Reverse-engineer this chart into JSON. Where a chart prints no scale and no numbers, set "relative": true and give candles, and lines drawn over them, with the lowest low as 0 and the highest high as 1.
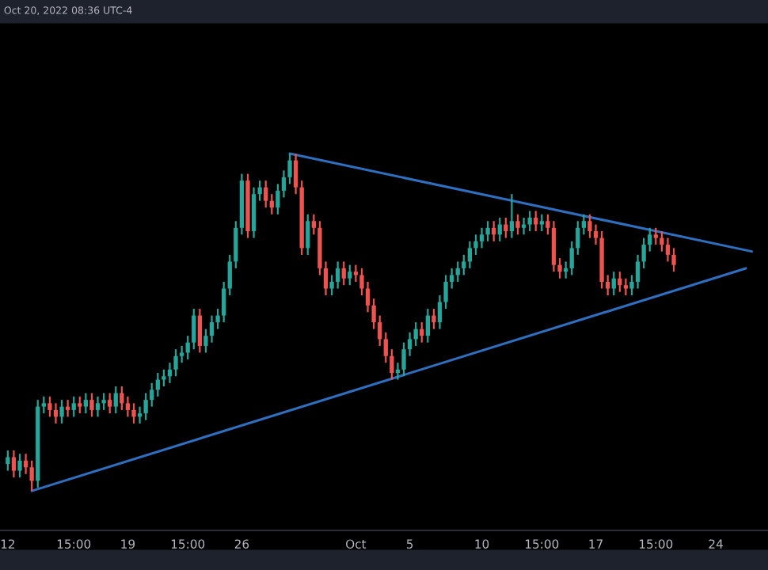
{
  "chart_data": {
    "type": "candlestick",
    "title": "Oct 20, 2022 08:36 UTC-4",
    "relative": true,
    "categories": [
      "12",
      null,
      null,
      null,
      null,
      null,
      null,
      null,
      null,
      null,
      null,
      "15:00",
      null,
      null,
      null,
      null,
      null,
      null,
      null,
      null,
      "19",
      null,
      null,
      null,
      null,
      null,
      null,
      null,
      null,
      null,
      "15:00",
      null,
      null,
      null,
      null,
      null,
      null,
      null,
      null,
      "26",
      null,
      null,
      null,
      null,
      null,
      null,
      null,
      null,
      null,
      null,
      null,
      null,
      null,
      null,
      null,
      null,
      null,
      null,
      "Oct",
      null,
      null,
      null,
      null,
      null,
      null,
      null,
      null,
      "5",
      null,
      null,
      null,
      null,
      null,
      null,
      null,
      null,
      null,
      null,
      null,
      "10",
      null,
      null,
      null,
      null,
      null,
      null,
      null,
      null,
      null,
      "15:00",
      null,
      null,
      null,
      null,
      null,
      null,
      null,
      null,
      "17",
      null,
      null,
      null,
      null,
      null,
      null,
      null,
      null,
      null,
      "15:00",
      null,
      null,
      null,
      null,
      null,
      null,
      null,
      null,
      null,
      "24",
      null,
      null,
      null,
      null,
      null,
      null,
      null,
      null,
      null
    ],
    "grid": false,
    "legend": false,
    "series": [
      {
        "ohlc": [
          [
            0.08,
            0.12,
            0.06,
            0.1
          ],
          [
            0.1,
            0.12,
            0.04,
            0.06
          ],
          [
            0.06,
            0.11,
            0.04,
            0.09
          ],
          [
            0.09,
            0.11,
            0.05,
            0.07
          ],
          [
            0.07,
            0.09,
            0.0,
            0.03
          ],
          [
            0.03,
            0.27,
            0.01,
            0.25
          ],
          [
            0.25,
            0.28,
            0.23,
            0.26
          ],
          [
            0.26,
            0.28,
            0.22,
            0.24
          ],
          [
            0.24,
            0.26,
            0.2,
            0.22
          ],
          [
            0.22,
            0.27,
            0.2,
            0.25
          ],
          [
            0.25,
            0.27,
            0.22,
            0.24
          ],
          [
            0.24,
            0.28,
            0.22,
            0.26
          ],
          [
            0.26,
            0.28,
            0.23,
            0.25
          ],
          [
            0.25,
            0.29,
            0.23,
            0.27
          ],
          [
            0.27,
            0.29,
            0.22,
            0.24
          ],
          [
            0.24,
            0.28,
            0.22,
            0.26
          ],
          [
            0.26,
            0.29,
            0.24,
            0.27
          ],
          [
            0.27,
            0.29,
            0.23,
            0.25
          ],
          [
            0.25,
            0.31,
            0.23,
            0.29
          ],
          [
            0.29,
            0.31,
            0.24,
            0.26
          ],
          [
            0.26,
            0.28,
            0.22,
            0.24
          ],
          [
            0.24,
            0.26,
            0.2,
            0.22
          ],
          [
            0.22,
            0.25,
            0.2,
            0.23
          ],
          [
            0.23,
            0.29,
            0.21,
            0.27
          ],
          [
            0.27,
            0.32,
            0.25,
            0.3
          ],
          [
            0.3,
            0.35,
            0.28,
            0.33
          ],
          [
            0.33,
            0.36,
            0.31,
            0.34
          ],
          [
            0.34,
            0.38,
            0.32,
            0.36
          ],
          [
            0.36,
            0.42,
            0.34,
            0.4
          ],
          [
            0.4,
            0.43,
            0.38,
            0.41
          ],
          [
            0.41,
            0.46,
            0.39,
            0.44
          ],
          [
            0.44,
            0.54,
            0.42,
            0.52
          ],
          [
            0.52,
            0.54,
            0.41,
            0.43
          ],
          [
            0.43,
            0.48,
            0.41,
            0.46
          ],
          [
            0.46,
            0.52,
            0.44,
            0.5
          ],
          [
            0.5,
            0.54,
            0.48,
            0.52
          ],
          [
            0.52,
            0.62,
            0.5,
            0.6
          ],
          [
            0.6,
            0.7,
            0.58,
            0.68
          ],
          [
            0.68,
            0.8,
            0.66,
            0.78
          ],
          [
            0.78,
            0.94,
            0.76,
            0.92
          ],
          [
            0.92,
            0.94,
            0.75,
            0.77
          ],
          [
            0.77,
            0.9,
            0.75,
            0.88
          ],
          [
            0.88,
            0.92,
            0.86,
            0.9
          ],
          [
            0.9,
            0.92,
            0.84,
            0.86
          ],
          [
            0.86,
            0.88,
            0.82,
            0.84
          ],
          [
            0.84,
            0.91,
            0.82,
            0.89
          ],
          [
            0.89,
            0.95,
            0.87,
            0.93
          ],
          [
            0.93,
            1.0,
            0.91,
            0.98
          ],
          [
            0.98,
            1.0,
            0.88,
            0.9
          ],
          [
            0.9,
            0.92,
            0.7,
            0.72
          ],
          [
            0.72,
            0.82,
            0.7,
            0.8
          ],
          [
            0.8,
            0.82,
            0.76,
            0.78
          ],
          [
            0.78,
            0.8,
            0.64,
            0.66
          ],
          [
            0.66,
            0.68,
            0.58,
            0.6
          ],
          [
            0.6,
            0.64,
            0.58,
            0.62
          ],
          [
            0.62,
            0.68,
            0.6,
            0.66
          ],
          [
            0.66,
            0.68,
            0.61,
            0.63
          ],
          [
            0.63,
            0.67,
            0.61,
            0.65
          ],
          [
            0.65,
            0.67,
            0.62,
            0.64
          ],
          [
            0.64,
            0.66,
            0.58,
            0.6
          ],
          [
            0.6,
            0.62,
            0.53,
            0.55
          ],
          [
            0.55,
            0.57,
            0.48,
            0.5
          ],
          [
            0.5,
            0.52,
            0.43,
            0.45
          ],
          [
            0.45,
            0.47,
            0.38,
            0.4
          ],
          [
            0.4,
            0.42,
            0.33,
            0.35
          ],
          [
            0.35,
            0.38,
            0.33,
            0.36
          ],
          [
            0.36,
            0.44,
            0.34,
            0.42
          ],
          [
            0.42,
            0.47,
            0.4,
            0.45
          ],
          [
            0.45,
            0.5,
            0.43,
            0.48
          ],
          [
            0.48,
            0.5,
            0.44,
            0.46
          ],
          [
            0.46,
            0.54,
            0.44,
            0.52
          ],
          [
            0.52,
            0.54,
            0.48,
            0.5
          ],
          [
            0.5,
            0.58,
            0.48,
            0.56
          ],
          [
            0.56,
            0.64,
            0.54,
            0.62
          ],
          [
            0.62,
            0.66,
            0.6,
            0.64
          ],
          [
            0.64,
            0.68,
            0.62,
            0.66
          ],
          [
            0.66,
            0.7,
            0.64,
            0.68
          ],
          [
            0.68,
            0.74,
            0.66,
            0.72
          ],
          [
            0.72,
            0.76,
            0.7,
            0.74
          ],
          [
            0.74,
            0.78,
            0.72,
            0.76
          ],
          [
            0.76,
            0.8,
            0.74,
            0.78
          ],
          [
            0.78,
            0.8,
            0.74,
            0.76
          ],
          [
            0.76,
            0.81,
            0.74,
            0.79
          ],
          [
            0.79,
            0.81,
            0.75,
            0.77
          ],
          [
            0.77,
            0.88,
            0.75,
            0.8
          ],
          [
            0.8,
            0.82,
            0.76,
            0.78
          ],
          [
            0.78,
            0.81,
            0.76,
            0.79
          ],
          [
            0.79,
            0.83,
            0.77,
            0.81
          ],
          [
            0.81,
            0.83,
            0.77,
            0.79
          ],
          [
            0.79,
            0.82,
            0.77,
            0.8
          ],
          [
            0.8,
            0.82,
            0.76,
            0.78
          ],
          [
            0.78,
            0.8,
            0.65,
            0.67
          ],
          [
            0.67,
            0.69,
            0.63,
            0.65
          ],
          [
            0.65,
            0.68,
            0.63,
            0.66
          ],
          [
            0.66,
            0.74,
            0.64,
            0.72
          ],
          [
            0.72,
            0.8,
            0.7,
            0.78
          ],
          [
            0.78,
            0.82,
            0.76,
            0.8
          ],
          [
            0.8,
            0.82,
            0.75,
            0.77
          ],
          [
            0.77,
            0.79,
            0.73,
            0.75
          ],
          [
            0.75,
            0.77,
            0.6,
            0.62
          ],
          [
            0.62,
            0.64,
            0.58,
            0.6
          ],
          [
            0.6,
            0.65,
            0.58,
            0.63
          ],
          [
            0.63,
            0.65,
            0.59,
            0.61
          ],
          [
            0.61,
            0.63,
            0.58,
            0.6
          ],
          [
            0.6,
            0.64,
            0.58,
            0.62
          ],
          [
            0.62,
            0.7,
            0.6,
            0.68
          ],
          [
            0.68,
            0.75,
            0.66,
            0.73
          ],
          [
            0.73,
            0.78,
            0.71,
            0.76
          ],
          [
            0.76,
            0.78,
            0.73,
            0.75
          ],
          [
            0.75,
            0.77,
            0.71,
            0.73
          ],
          [
            0.73,
            0.75,
            0.68,
            0.7
          ],
          [
            0.7,
            0.72,
            0.65,
            0.67
          ],
          null,
          null,
          null,
          null,
          null,
          null,
          null,
          null,
          null,
          null,
          null,
          null,
          null,
          null,
          null,
          null
        ],
        "colors": [
          "#26a69a",
          "#ef5350",
          "#26a69a",
          "#ef5350",
          "#ef5350",
          "#26a69a",
          "#26a69a",
          "#ef5350",
          "#ef5350",
          "#26a69a",
          "#ef5350",
          "#26a69a",
          "#ef5350",
          "#26a69a",
          "#ef5350",
          "#26a69a",
          "#26a69a",
          "#ef5350",
          "#26a69a",
          "#ef5350",
          "#ef5350",
          "#ef5350",
          "#26a69a",
          "#26a69a",
          "#26a69a",
          "#26a69a",
          "#26a69a",
          "#26a69a",
          "#26a69a",
          "#26a69a",
          "#26a69a",
          "#26a69a",
          "#ef5350",
          "#26a69a",
          "#26a69a",
          "#26a69a",
          "#26a69a",
          "#26a69a",
          "#26a69a",
          "#26a69a",
          "#ef5350",
          "#26a69a",
          "#26a69a",
          "#ef5350",
          "#ef5350",
          "#26a69a",
          "#26a69a",
          "#26a69a",
          "#ef5350",
          "#ef5350",
          "#26a69a",
          "#ef5350",
          "#ef5350",
          "#ef5350",
          "#26a69a",
          "#26a69a",
          "#ef5350",
          "#26a69a",
          "#ef5350",
          "#ef5350",
          "#ef5350",
          "#ef5350",
          "#ef5350",
          "#ef5350",
          "#ef5350",
          "#26a69a",
          "#26a69a",
          "#26a69a",
          "#26a69a",
          "#ef5350",
          "#26a69a",
          "#ef5350",
          "#26a69a",
          "#26a69a",
          "#26a69a",
          "#26a69a",
          "#26a69a",
          "#26a69a",
          "#26a69a",
          "#26a69a",
          "#26a69a",
          "#ef5350",
          "#26a69a",
          "#ef5350",
          "#26a69a",
          "#ef5350",
          "#26a69a",
          "#26a69a",
          "#ef5350",
          "#26a69a",
          "#ef5350",
          "#ef5350",
          "#ef5350",
          "#26a69a",
          "#26a69a",
          "#26a69a",
          "#26a69a",
          "#ef5350",
          "#ef5350",
          "#ef5350",
          "#ef5350",
          "#26a69a",
          "#ef5350",
          "#ef5350",
          "#26a69a",
          "#26a69a",
          "#26a69a",
          "#26a69a",
          "#ef5350",
          "#ef5350",
          "#ef5350",
          "#ef5350",
          null,
          null,
          null,
          null,
          null,
          null,
          null,
          null,
          null,
          null,
          null,
          null,
          null,
          null,
          null,
          null
        ]
      },
      {
        "type": "line",
        "color": "#2f6fc0",
        "values": [
          null,
          null,
          null,
          null,
          0.0,
          null,
          null,
          null,
          null,
          null,
          null,
          null,
          null,
          null,
          null,
          null,
          null,
          null,
          null,
          null,
          null,
          null,
          null,
          null,
          null,
          null,
          null,
          null,
          null,
          null,
          null,
          null,
          null,
          null,
          null,
          null,
          null,
          null,
          null,
          null,
          null,
          null,
          null,
          null,
          null,
          null,
          null,
          null,
          null,
          null,
          null,
          null,
          null,
          null,
          null,
          null,
          null,
          null,
          null,
          null,
          null,
          null,
          null,
          null,
          null,
          null,
          null,
          null,
          null,
          null,
          null,
          null,
          null,
          null,
          null,
          null,
          null,
          null,
          null,
          null,
          null,
          null,
          null,
          null,
          null,
          null,
          null,
          null,
          null,
          null,
          null,
          null,
          null,
          null,
          null,
          null,
          null,
          null,
          null,
          null,
          null,
          null,
          null,
          null,
          null,
          null,
          null,
          null,
          null,
          null,
          null,
          null,
          null,
          null,
          null,
          null,
          null,
          null,
          null,
          null,
          null,
          null,
          null,
          0.66,
          null,
          null,
          null,
          null
        ]
      },
      {
        "type": "line",
        "color": "#2f6fc0",
        "values": [
          null,
          null,
          null,
          null,
          null,
          null,
          null,
          null,
          null,
          null,
          null,
          null,
          null,
          null,
          null,
          null,
          null,
          null,
          null,
          null,
          null,
          null,
          null,
          null,
          null,
          null,
          null,
          null,
          null,
          null,
          null,
          null,
          null,
          null,
          null,
          null,
          null,
          null,
          null,
          null,
          null,
          null,
          null,
          null,
          null,
          null,
          null,
          1.0,
          null,
          null,
          null,
          null,
          null,
          null,
          null,
          null,
          null,
          null,
          null,
          null,
          null,
          null,
          null,
          null,
          null,
          null,
          null,
          null,
          null,
          null,
          null,
          null,
          null,
          null,
          null,
          null,
          null,
          null,
          null,
          null,
          null,
          null,
          null,
          null,
          null,
          null,
          null,
          null,
          null,
          null,
          null,
          null,
          null,
          null,
          null,
          null,
          null,
          null,
          null,
          null,
          null,
          null,
          null,
          null,
          null,
          null,
          null,
          null,
          null,
          null,
          null,
          null,
          null,
          null,
          null,
          null,
          null,
          null,
          null,
          null,
          null,
          null,
          null,
          null,
          0.71,
          null,
          null,
          null
        ]
      }
    ]
  }
}
